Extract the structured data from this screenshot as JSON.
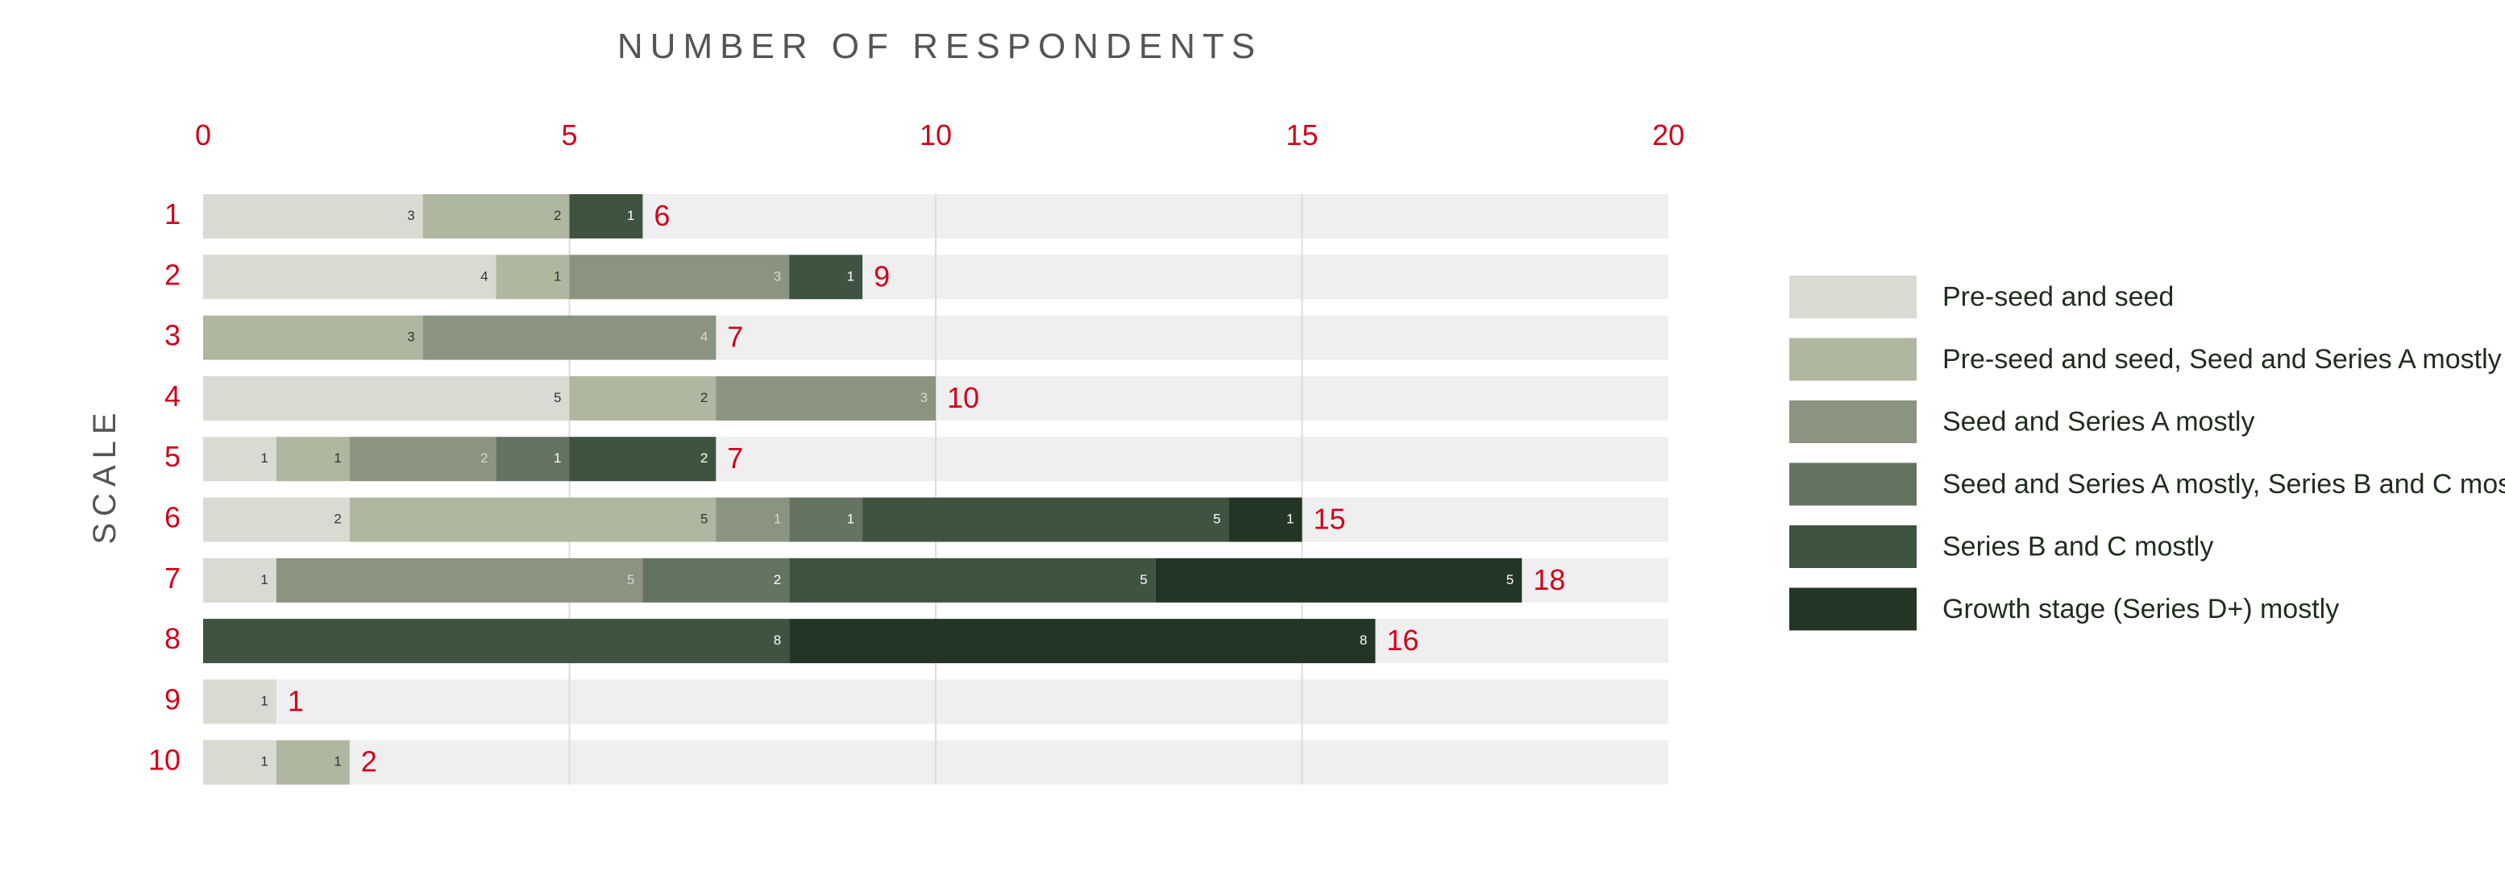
{
  "chart_data": {
    "type": "bar",
    "orientation": "horizontal",
    "stacked": true,
    "title": "NUMBER OF RESPONDENTS",
    "xlabel": "NUMBER OF RESPONDENTS",
    "ylabel": "SCALE",
    "xlim": [
      0,
      20
    ],
    "xticks": [
      "0",
      "5",
      "10",
      "15",
      "20"
    ],
    "categories": [
      "1",
      "2",
      "3",
      "4",
      "5",
      "6",
      "7",
      "8",
      "9",
      "10"
    ],
    "totals": [
      6,
      9,
      7,
      10,
      7,
      15,
      18,
      16,
      1,
      2
    ],
    "series": [
      {
        "name": "Pre-seed and seed",
        "color": "#d9dbd3",
        "label_color": "#333333",
        "values": [
          3,
          4,
          0,
          5,
          1,
          2,
          1,
          0,
          1,
          1
        ]
      },
      {
        "name": "Pre-seed and seed, Seed and Series A mostly",
        "color": "#b0b7a0",
        "label_color": "#333333",
        "values": [
          2,
          1,
          3,
          2,
          1,
          5,
          0,
          0,
          0,
          1
        ]
      },
      {
        "name": "Seed and Series A mostly",
        "color": "#8a9480",
        "label_color": "#d8d8d0",
        "values": [
          0,
          3,
          4,
          3,
          2,
          1,
          5,
          0,
          0,
          0
        ]
      },
      {
        "name": "Seed and Series A mostly, Series B and C mostly",
        "color": "#647461",
        "label_color": "#ffffff",
        "values": [
          0,
          0,
          0,
          0,
          1,
          1,
          2,
          0,
          0,
          0
        ]
      },
      {
        "name": "Series B and C mostly",
        "color": "#3e5340",
        "label_color": "#ffffff",
        "values": [
          1,
          1,
          0,
          0,
          2,
          5,
          5,
          8,
          0,
          0
        ]
      },
      {
        "name": "Growth stage (Series D+) mostly",
        "color": "#233626",
        "label_color": "#ffffff",
        "values": [
          0,
          0,
          0,
          0,
          0,
          1,
          5,
          8,
          0,
          0
        ]
      }
    ],
    "grid": true,
    "legend_position": "right"
  }
}
